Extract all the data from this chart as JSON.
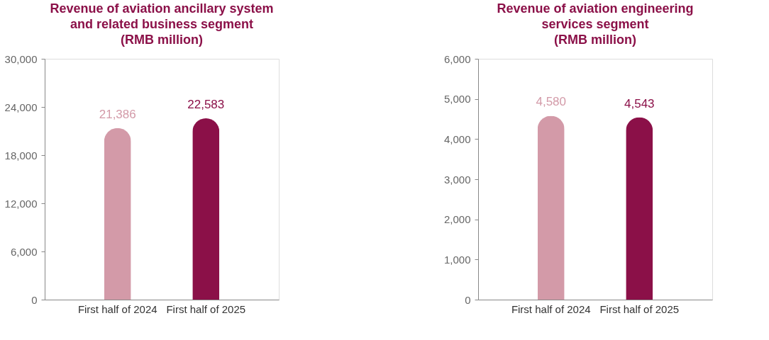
{
  "chart_data": [
    {
      "type": "bar",
      "title": "Revenue of aviation ancillary system\nand related business segment\n(RMB million)",
      "categories": [
        "First half of 2024",
        "First half of 2025"
      ],
      "values": [
        21386,
        22583
      ],
      "colors": [
        "#d39aa8",
        "#8b1048"
      ],
      "value_labels": [
        "21,386",
        "22,583"
      ],
      "ylim": [
        0,
        30000
      ],
      "yticks": [
        0,
        {
          "value": 6000,
          "label": "6,000"
        },
        {
          "value": 12000,
          "label": "12,000"
        },
        {
          "value": 18000,
          "label": "18,000"
        },
        {
          "value": 24000,
          "label": "24,000"
        },
        {
          "value": 30000,
          "label": "30,000"
        }
      ],
      "grid": false
    },
    {
      "type": "bar",
      "title": "Revenue of aviation engineering\nservices segment\n(RMB million)",
      "categories": [
        "First half of 2024",
        "First half of 2025"
      ],
      "values": [
        4580,
        4543
      ],
      "colors": [
        "#d39aa8",
        "#8b1048"
      ],
      "value_labels": [
        "4,580",
        "4,543"
      ],
      "ylim": [
        0,
        6000
      ],
      "yticks": [
        0,
        {
          "value": 1000,
          "label": "1,000"
        },
        {
          "value": 2000,
          "label": "2,000"
        },
        {
          "value": 3000,
          "label": "3,000"
        },
        {
          "value": 4000,
          "label": "4,000"
        },
        {
          "value": 5000,
          "label": "5,000"
        },
        {
          "value": 6000,
          "label": "6,000"
        }
      ],
      "grid": false
    }
  ]
}
